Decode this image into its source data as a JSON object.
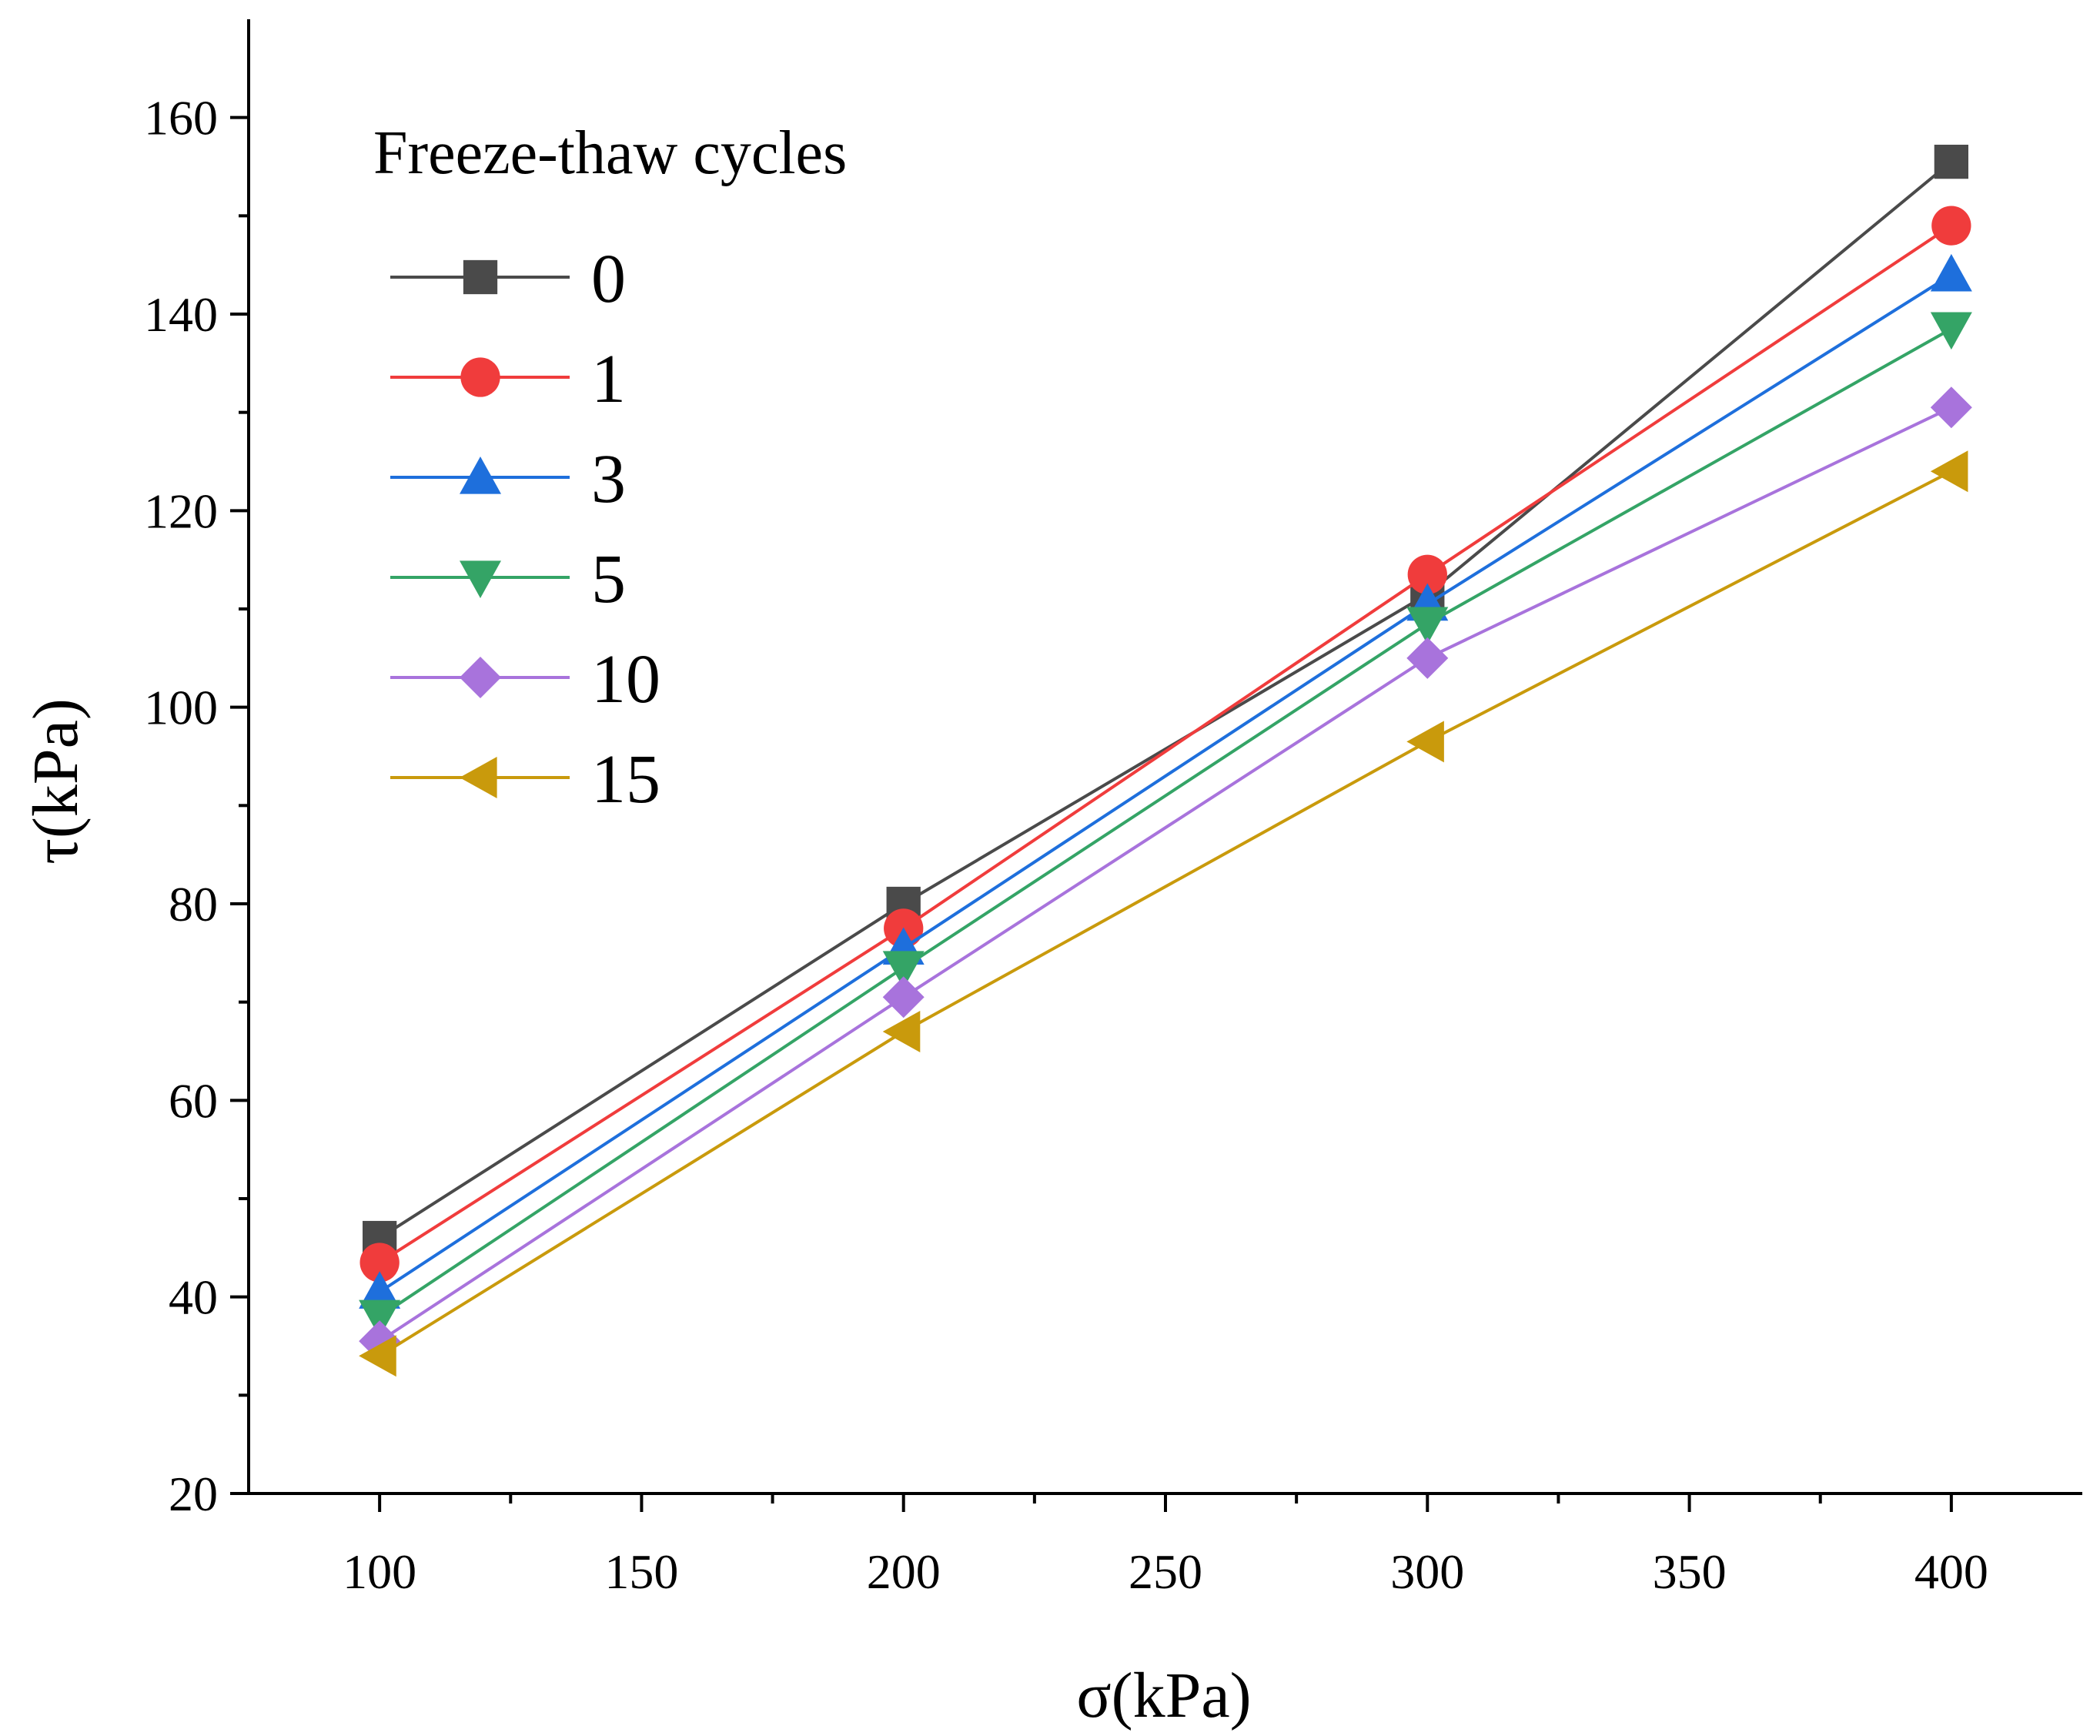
{
  "chart_data": {
    "type": "line",
    "title": "",
    "xlabel": "σ(kPa)",
    "ylabel": "τ(kPa)",
    "xlim": [
      75,
      425
    ],
    "ylim": [
      20,
      170
    ],
    "xticks": [
      100,
      150,
      200,
      250,
      300,
      350,
      400
    ],
    "yticks": [
      20,
      40,
      60,
      80,
      100,
      120,
      140,
      160
    ],
    "grid": false,
    "legend": {
      "title": "Freeze-thaw cycles",
      "position": "top-left"
    },
    "x": [
      100,
      200,
      300,
      400
    ],
    "series": [
      {
        "name": "0",
        "marker": "square",
        "color": "#4a4a4a",
        "values": [
          46.0,
          80.0,
          111.5,
          155.5
        ]
      },
      {
        "name": "1",
        "marker": "circle",
        "color": "#f03c3c",
        "values": [
          43.5,
          77.5,
          113.5,
          149.0
        ]
      },
      {
        "name": "3",
        "marker": "triangle-up",
        "color": "#1e6fdc",
        "values": [
          40.5,
          75.5,
          110.5,
          144.0
        ]
      },
      {
        "name": "5",
        "marker": "triangle-down",
        "color": "#34a466",
        "values": [
          38.0,
          73.5,
          108.5,
          138.5
        ]
      },
      {
        "name": "10",
        "marker": "diamond",
        "color": "#a873dc",
        "values": [
          35.5,
          70.5,
          105.0,
          130.5
        ]
      },
      {
        "name": "15",
        "marker": "triangle-left",
        "color": "#c99a0c",
        "values": [
          34.0,
          67.0,
          96.5,
          124.0
        ]
      }
    ]
  }
}
